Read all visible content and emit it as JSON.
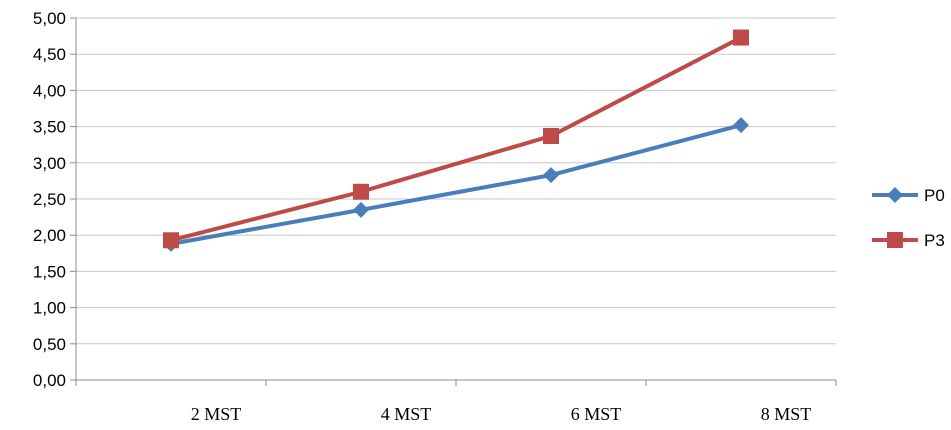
{
  "chart_data": {
    "type": "line",
    "x": [
      "2 MST",
      "4 MST",
      "6 MST",
      "8 MST"
    ],
    "y_ticks": [
      "0,00",
      "0,50",
      "1,00",
      "1,50",
      "2,00",
      "2,50",
      "3,00",
      "3,50",
      "4,00",
      "4,50",
      "5,00"
    ],
    "ylim": [
      0,
      5
    ],
    "grid": "horizontal",
    "legend_position": "right",
    "series": [
      {
        "name": "P0",
        "values": [
          1.88,
          2.35,
          2.83,
          3.52
        ],
        "color": "#4a7ebb",
        "marker": "diamond"
      },
      {
        "name": "P3",
        "values": [
          1.93,
          2.6,
          3.37,
          4.73
        ],
        "color": "#be4b48",
        "marker": "square"
      }
    ]
  }
}
